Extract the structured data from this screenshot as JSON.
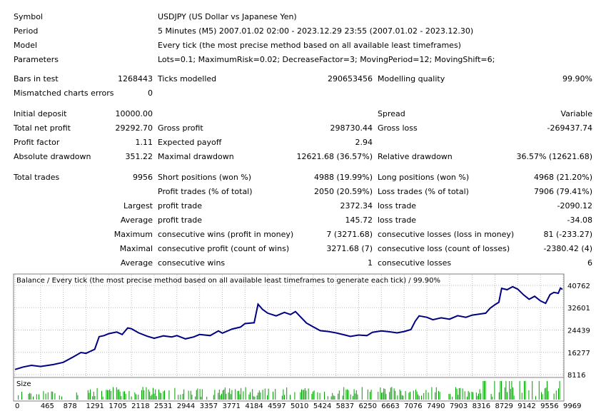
{
  "header": [
    {
      "label": "Symbol",
      "value": "USDJPY (US Dollar vs Japanese Yen)"
    },
    {
      "label": "Period",
      "value": "5 Minutes (M5) 2007.01.02 02:00 - 2023.12.29 23:55 (2007.01.02 - 2023.12.30)"
    },
    {
      "label": "Model",
      "value": "Every tick (the most precise method based on all available least timeframes)"
    },
    {
      "label": "Parameters",
      "value": "Lots=0.1; MaximumRisk=0.02; DecreaseFactor=3; MovingPeriod=12; MovingShift=6;"
    }
  ],
  "stats": {
    "bars_in_test_label": "Bars in test",
    "bars_in_test": "1268443",
    "ticks_modelled_label": "Ticks modelled",
    "ticks_modelled": "290653456",
    "modelling_quality_label": "Modelling quality",
    "modelling_quality": "99.90%",
    "mismatched_label": "Mismatched charts errors",
    "mismatched": "0",
    "initial_deposit_label": "Initial deposit",
    "initial_deposit": "10000.00",
    "spread_label": "Spread",
    "spread": "Variable",
    "total_net_profit_label": "Total net profit",
    "total_net_profit": "29292.70",
    "gross_profit_label": "Gross profit",
    "gross_profit": "298730.44",
    "gross_loss_label": "Gross loss",
    "gross_loss": "-269437.74",
    "profit_factor_label": "Profit factor",
    "profit_factor": "1.11",
    "expected_payoff_label": "Expected payoff",
    "expected_payoff": "2.94",
    "absolute_drawdown_label": "Absolute drawdown",
    "absolute_drawdown": "351.22",
    "maximal_drawdown_label": "Maximal drawdown",
    "maximal_drawdown": "12621.68 (36.57%)",
    "relative_drawdown_label": "Relative drawdown",
    "relative_drawdown": "36.57% (12621.68)",
    "total_trades_label": "Total trades",
    "total_trades": "9956",
    "short_positions_label": "Short positions (won %)",
    "short_positions": "4988 (19.99%)",
    "long_positions_label": "Long positions (won %)",
    "long_positions": "4968 (21.20%)",
    "profit_trades_label": "Profit trades (% of total)",
    "profit_trades": "2050 (20.59%)",
    "loss_trades_label": "Loss trades (% of total)",
    "loss_trades": "7906 (79.41%)",
    "largest_label": "Largest",
    "largest_profit_label": "profit trade",
    "largest_profit": "2372.34",
    "largest_loss_label": "loss trade",
    "largest_loss": "-2090.12",
    "average_label": "Average",
    "average_profit_label": "profit trade",
    "average_profit": "145.72",
    "average_loss_label": "loss trade",
    "average_loss": "-34.08",
    "maximum_label": "Maximum",
    "max_cons_wins_label": "consecutive wins (profit in money)",
    "max_cons_wins": "7 (3271.68)",
    "max_cons_losses_label": "consecutive losses (loss in money)",
    "max_cons_losses": "81 (-233.27)",
    "maximal_label": "Maximal",
    "maximal_cons_profit_label": "consecutive profit (count of wins)",
    "maximal_cons_profit": "3271.68 (7)",
    "maximal_cons_loss_label": "consecutive loss (count of losses)",
    "maximal_cons_loss": "-2380.42 (4)",
    "avg_cons_label": "Average",
    "avg_cons_wins_label": "consecutive wins",
    "avg_cons_wins": "1",
    "avg_cons_losses_label": "consecutive losses",
    "avg_cons_losses": "6"
  },
  "chart_data": {
    "type": "line",
    "title": "Balance / Every tick (the most precise method based on all available least timeframes to generate each tick) / 99.90%",
    "size_label": "Size",
    "line_color": "#000080",
    "size_color": "#00a000",
    "y_ticks": [
      40762,
      32601,
      24439,
      16277,
      8116
    ],
    "ylim": [
      8116,
      40762
    ],
    "x_ticks": [
      0,
      465,
      878,
      1291,
      1705,
      2118,
      2531,
      2944,
      3357,
      3771,
      4184,
      4597,
      5010,
      5424,
      5837,
      6250,
      6663,
      7076,
      7490,
      7903,
      8316,
      8729,
      9142,
      9556,
      9969
    ],
    "xlim": [
      0,
      9956
    ],
    "balance": [
      [
        0,
        10000
      ],
      [
        150,
        10900
      ],
      [
        300,
        11500
      ],
      [
        465,
        11100
      ],
      [
        700,
        11800
      ],
      [
        878,
        12600
      ],
      [
        1050,
        14500
      ],
      [
        1200,
        16200
      ],
      [
        1291,
        15900
      ],
      [
        1450,
        17400
      ],
      [
        1530,
        22000
      ],
      [
        1620,
        22400
      ],
      [
        1705,
        23100
      ],
      [
        1850,
        23700
      ],
      [
        1950,
        22800
      ],
      [
        2050,
        25200
      ],
      [
        2118,
        24900
      ],
      [
        2250,
        23400
      ],
      [
        2400,
        22200
      ],
      [
        2531,
        21400
      ],
      [
        2700,
        22300
      ],
      [
        2850,
        21900
      ],
      [
        2944,
        22400
      ],
      [
        3100,
        21200
      ],
      [
        3250,
        21900
      ],
      [
        3357,
        22800
      ],
      [
        3550,
        22400
      ],
      [
        3700,
        24100
      ],
      [
        3771,
        23300
      ],
      [
        3950,
        24800
      ],
      [
        4100,
        25500
      ],
      [
        4184,
        26800
      ],
      [
        4350,
        27100
      ],
      [
        4420,
        33900
      ],
      [
        4500,
        32000
      ],
      [
        4597,
        30600
      ],
      [
        4750,
        29600
      ],
      [
        4900,
        30900
      ],
      [
        5010,
        30100
      ],
      [
        5100,
        31200
      ],
      [
        5200,
        29100
      ],
      [
        5300,
        27000
      ],
      [
        5424,
        25600
      ],
      [
        5550,
        24200
      ],
      [
        5700,
        23900
      ],
      [
        5837,
        23400
      ],
      [
        6000,
        22600
      ],
      [
        6100,
        22100
      ],
      [
        6250,
        22600
      ],
      [
        6400,
        22400
      ],
      [
        6500,
        23600
      ],
      [
        6663,
        24100
      ],
      [
        6800,
        23800
      ],
      [
        6950,
        23400
      ],
      [
        7076,
        23900
      ],
      [
        7200,
        24600
      ],
      [
        7280,
        27700
      ],
      [
        7350,
        29600
      ],
      [
        7490,
        29100
      ],
      [
        7600,
        28200
      ],
      [
        7750,
        28900
      ],
      [
        7903,
        28400
      ],
      [
        8050,
        29700
      ],
      [
        8200,
        29100
      ],
      [
        8316,
        29900
      ],
      [
        8450,
        30300
      ],
      [
        8560,
        30600
      ],
      [
        8640,
        32400
      ],
      [
        8729,
        33700
      ],
      [
        8800,
        34600
      ],
      [
        8850,
        39700
      ],
      [
        8950,
        39200
      ],
      [
        9050,
        40300
      ],
      [
        9142,
        39400
      ],
      [
        9250,
        37300
      ],
      [
        9350,
        35700
      ],
      [
        9450,
        36800
      ],
      [
        9556,
        35100
      ],
      [
        9650,
        34200
      ],
      [
        9730,
        37400
      ],
      [
        9800,
        38200
      ],
      [
        9880,
        37900
      ],
      [
        9920,
        39800
      ],
      [
        9956,
        39300
      ]
    ]
  }
}
